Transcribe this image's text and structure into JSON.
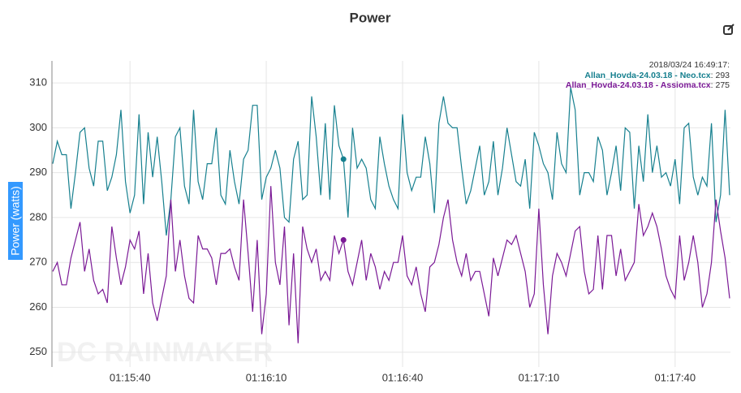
{
  "chart_data": {
    "type": "line",
    "title": "Power",
    "y_label": "Power (watts)",
    "watermark": "DC RAINMAKER",
    "x": [
      "01:15:23",
      "01:15:24",
      "01:15:25",
      "01:15:26",
      "01:15:27",
      "01:15:28",
      "01:15:29",
      "01:15:30",
      "01:15:31",
      "01:15:32",
      "01:15:33",
      "01:15:34",
      "01:15:35",
      "01:15:36",
      "01:15:37",
      "01:15:38",
      "01:15:39",
      "01:15:40",
      "01:15:41",
      "01:15:42",
      "01:15:43",
      "01:15:44",
      "01:15:45",
      "01:15:46",
      "01:15:47",
      "01:15:48",
      "01:15:49",
      "01:15:50",
      "01:15:51",
      "01:15:52",
      "01:15:53",
      "01:15:54",
      "01:15:55",
      "01:15:56",
      "01:15:57",
      "01:15:58",
      "01:15:59",
      "01:16:00",
      "01:16:01",
      "01:16:02",
      "01:16:03",
      "01:16:04",
      "01:16:05",
      "01:16:06",
      "01:16:07",
      "01:16:08",
      "01:16:09",
      "01:16:10",
      "01:16:11",
      "01:16:12",
      "01:16:13",
      "01:16:14",
      "01:16:15",
      "01:16:16",
      "01:16:17",
      "01:16:18",
      "01:16:19",
      "01:16:20",
      "01:16:21",
      "01:16:22",
      "01:16:23",
      "01:16:24",
      "01:16:25",
      "01:16:26",
      "01:16:27",
      "01:16:28",
      "01:16:29",
      "01:16:30",
      "01:16:31",
      "01:16:32",
      "01:16:33",
      "01:16:34",
      "01:16:35",
      "01:16:36",
      "01:16:37",
      "01:16:38",
      "01:16:39",
      "01:16:40",
      "01:16:41",
      "01:16:42",
      "01:16:43",
      "01:16:44",
      "01:16:45",
      "01:16:46",
      "01:16:47",
      "01:16:48",
      "01:16:49",
      "01:16:50",
      "01:16:51",
      "01:16:52",
      "01:16:53",
      "01:16:54",
      "01:16:55",
      "01:16:56",
      "01:16:57",
      "01:16:58",
      "01:16:59",
      "01:17:00",
      "01:17:01",
      "01:17:02",
      "01:17:03",
      "01:17:04",
      "01:17:05",
      "01:17:06",
      "01:17:07",
      "01:17:08",
      "01:17:09",
      "01:17:10",
      "01:17:11",
      "01:17:12",
      "01:17:13",
      "01:17:14",
      "01:17:15",
      "01:17:16",
      "01:17:17",
      "01:17:18",
      "01:17:19",
      "01:17:20",
      "01:17:21",
      "01:17:22",
      "01:17:23",
      "01:17:24",
      "01:17:25",
      "01:17:26",
      "01:17:27",
      "01:17:28",
      "01:17:29",
      "01:17:30",
      "01:17:31",
      "01:17:32",
      "01:17:33",
      "01:17:34",
      "01:17:35",
      "01:17:36",
      "01:17:37",
      "01:17:38",
      "01:17:39",
      "01:17:40",
      "01:17:41",
      "01:17:42",
      "01:17:43",
      "01:17:44",
      "01:17:45",
      "01:17:46",
      "01:17:47",
      "01:17:48",
      "01:17:49",
      "01:17:50",
      "01:17:51",
      "01:17:52"
    ],
    "xticks": [
      "01:15:40",
      "01:16:10",
      "01:16:40",
      "01:17:10",
      "01:17:40"
    ],
    "ylim": [
      246.7,
      314.9
    ],
    "yticks": [
      250,
      260,
      270,
      280,
      290,
      300,
      310
    ],
    "grid": true,
    "series": [
      {
        "name": "Allan_Hovda-24.03.18 - Neo.tcx",
        "color": "#17808f",
        "values": [
          292,
          297,
          294,
          294,
          282,
          290,
          299,
          300,
          291,
          287,
          297,
          297,
          286,
          289,
          294,
          304,
          288,
          281,
          285,
          303,
          283,
          299,
          289,
          298,
          288,
          276,
          284,
          298,
          300,
          287,
          283,
          304,
          288,
          284,
          292,
          292,
          300,
          285,
          283,
          295,
          288,
          283,
          293,
          295,
          305,
          305,
          284,
          289,
          291,
          295,
          291,
          280,
          279,
          293,
          297,
          284,
          285,
          307,
          298,
          285,
          301,
          284,
          305,
          296,
          293,
          280,
          300,
          291,
          293,
          291,
          284,
          282,
          298,
          292,
          287,
          284,
          282,
          303,
          290,
          286,
          289,
          289,
          298,
          292,
          281,
          301,
          307,
          301,
          300,
          300,
          291,
          283,
          286,
          291,
          296,
          285,
          288,
          297,
          285,
          291,
          300,
          294,
          288,
          287,
          293,
          282,
          299,
          296,
          292,
          290,
          284,
          299,
          292,
          290,
          309,
          304,
          285,
          290,
          290,
          288,
          298,
          295,
          285,
          290,
          296,
          286,
          300,
          299,
          282,
          296,
          288,
          303,
          290,
          296,
          289,
          290,
          287,
          293,
          283,
          300,
          301,
          289,
          285,
          289,
          287,
          301,
          279,
          285,
          304,
          285
        ]
      },
      {
        "name": "Allan_Hovda-24.03.18 - Assioma.tcx",
        "color": "#7b1a96",
        "values": [
          268,
          270,
          265,
          265,
          271,
          275,
          279,
          268,
          273,
          266,
          263,
          264,
          261,
          278,
          271,
          265,
          269,
          275,
          273,
          277,
          263,
          272,
          261,
          257,
          262,
          267,
          284,
          268,
          275,
          267,
          262,
          261,
          276,
          273,
          273,
          271,
          265,
          272,
          272,
          273,
          269,
          266,
          284,
          272,
          259,
          275,
          254,
          263,
          287,
          270,
          265,
          278,
          256,
          272,
          252,
          278,
          273,
          270,
          273,
          266,
          268,
          266,
          276,
          272,
          275,
          268,
          265,
          270,
          275,
          266,
          272,
          269,
          264,
          268,
          266,
          270,
          270,
          276,
          267,
          265,
          269,
          263,
          259,
          269,
          270,
          274,
          280,
          284,
          275,
          270,
          267,
          272,
          266,
          268,
          268,
          263,
          258,
          271,
          267,
          271,
          275,
          274,
          276,
          272,
          268,
          260,
          263,
          282,
          265,
          254,
          267,
          272,
          270,
          267,
          272,
          277,
          278,
          268,
          263,
          264,
          276,
          264,
          276,
          276,
          267,
          273,
          266,
          268,
          270,
          283,
          276,
          278,
          281,
          278,
          273,
          267,
          264,
          262,
          276,
          266,
          270,
          276,
          270,
          260,
          263,
          270,
          284,
          277,
          271,
          262
        ]
      }
    ],
    "tooltip": {
      "header": "2018/03/24 16:49:17:",
      "values": [
        293,
        275
      ],
      "value_labels": [
        ": 293",
        ": 275"
      ]
    }
  }
}
